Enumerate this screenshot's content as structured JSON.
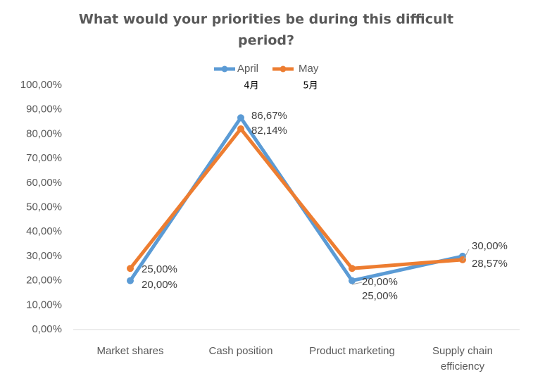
{
  "chart_data": {
    "type": "line",
    "title_lines": [
      "What would your priorities be during this difficult",
      "period?"
    ],
    "categories": [
      [
        "Market shares"
      ],
      [
        "Cash position"
      ],
      [
        "Product marketing"
      ],
      [
        "Supply chain",
        "efficiency"
      ]
    ],
    "series": [
      {
        "name": "April",
        "subname": "4月",
        "color": "#5B9BD5",
        "values": [
          20.0,
          86.67,
          20.0,
          30.0
        ],
        "labels": [
          "20,00%",
          "86,67%",
          "20,00%",
          "30,00%"
        ]
      },
      {
        "name": "May",
        "subname": "5月",
        "color": "#ED7D31",
        "values": [
          25.0,
          82.14,
          25.0,
          28.57
        ],
        "labels": [
          "25,00%",
          "82,14%",
          "25,00%",
          "28,57%"
        ]
      }
    ],
    "ylim": [
      0,
      100
    ],
    "yticks": [
      0,
      10,
      20,
      30,
      40,
      50,
      60,
      70,
      80,
      90,
      100
    ],
    "ytick_labels": [
      "0,00%",
      "10,00%",
      "20,00%",
      "30,00%",
      "40,00%",
      "50,00%",
      "60,00%",
      "70,00%",
      "80,00%",
      "90,00%",
      "100,00%"
    ],
    "grid": false,
    "legend_position": "top"
  }
}
